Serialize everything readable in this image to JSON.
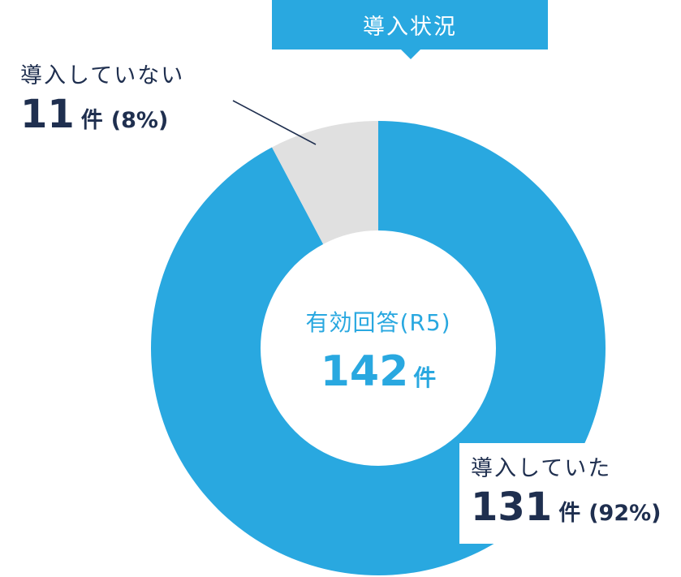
{
  "chart_data": {
    "type": "pie",
    "title": "導入状況",
    "categories": [
      "導入していた",
      "導入していない"
    ],
    "values": [
      131,
      11
    ],
    "percentages": [
      "92%",
      "8%"
    ],
    "unit": "件",
    "colors": [
      "#29a8e0",
      "#e0e0e0"
    ],
    "donut": true,
    "center": {
      "caption": "有効回答(R5)",
      "total": "142",
      "total_unit": "件"
    }
  },
  "callouts": {
    "deployed": {
      "label": "導入していた",
      "count": "131",
      "unit": "件",
      "pct": "(92%)"
    },
    "not_deployed": {
      "label": "導入していない",
      "count": "11",
      "unit": "件",
      "pct": "(8%)"
    }
  },
  "colors": {
    "accent": "#29a8e0",
    "text_dark": "#1f2f4f",
    "slice_gray": "#e0e0e0"
  }
}
